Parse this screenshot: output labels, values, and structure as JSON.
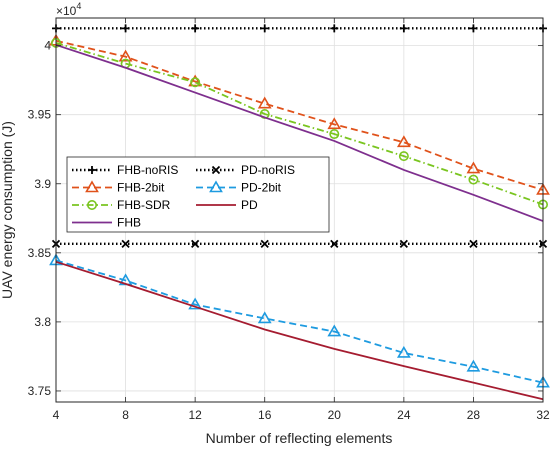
{
  "chart_data": {
    "type": "line",
    "xlabel": "Number of reflecting elements",
    "ylabel": "UAV energy consumption (J)",
    "y_exponent_label": "×10",
    "y_exponent_power": "4",
    "x": [
      4,
      8,
      12,
      16,
      20,
      24,
      28,
      32
    ],
    "x_ticks": [
      "4",
      "8",
      "12",
      "16",
      "20",
      "24",
      "28",
      "32"
    ],
    "xlim": [
      4,
      32
    ],
    "y_ticks": [
      "3.75",
      "3.8",
      "3.85",
      "3.9",
      "3.95",
      "4"
    ],
    "y_tick_values": [
      3.75,
      3.8,
      3.85,
      3.9,
      3.95,
      4.0
    ],
    "ylim": [
      3.742,
      4.02
    ],
    "grid": true,
    "legend_position": "middle-left",
    "series": [
      {
        "name": "FHB-noRIS",
        "color": "#000000",
        "dash": "dotted",
        "marker": "plus",
        "values": [
          4.0125,
          4.0125,
          4.0125,
          4.0125,
          4.0125,
          4.0125,
          4.0125,
          4.0125
        ]
      },
      {
        "name": "PD-noRIS",
        "color": "#000000",
        "dash": "dotted",
        "marker": "x",
        "values": [
          3.8565,
          3.8565,
          3.8565,
          3.8565,
          3.8565,
          3.8565,
          3.8565,
          3.8565
        ]
      },
      {
        "name": "FHB-2bit",
        "color": "#e0521b",
        "dash": "dashed",
        "marker": "triangle",
        "values": [
          4.0035,
          3.992,
          3.974,
          3.958,
          3.943,
          3.93,
          3.911,
          3.8955
        ]
      },
      {
        "name": "PD-2bit",
        "color": "#1e9be0",
        "dash": "dashed",
        "marker": "triangle",
        "values": [
          3.8445,
          3.83,
          3.8125,
          3.8025,
          3.793,
          3.7775,
          3.7675,
          3.756
        ]
      },
      {
        "name": "FHB-SDR",
        "color": "#7ac520",
        "dash": "dashdot",
        "marker": "circle",
        "values": [
          4.002,
          3.987,
          3.9735,
          3.9505,
          3.936,
          3.92,
          3.903,
          3.885
        ]
      },
      {
        "name": "PD",
        "color": "#a51c30",
        "dash": "solid",
        "marker": "none",
        "values": [
          3.8435,
          3.8275,
          3.811,
          3.7945,
          3.7805,
          3.768,
          3.756,
          3.744
        ]
      },
      {
        "name": "FHB",
        "color": "#7e2f8e",
        "dash": "solid",
        "marker": "none",
        "values": [
          4.0005,
          3.984,
          3.966,
          3.948,
          3.931,
          3.91,
          3.892,
          3.873
        ]
      }
    ]
  }
}
